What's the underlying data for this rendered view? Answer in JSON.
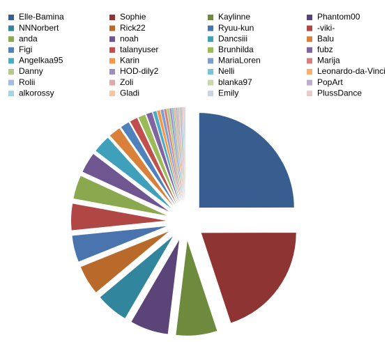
{
  "chart_data": {
    "type": "pie",
    "categories": [
      "Elle-Bamina",
      "Sophie",
      "Kaylinne",
      "Phantom00",
      "NNNorbert",
      "Rick22",
      "Ryuu-kun",
      "-viki-",
      "anda",
      "noah",
      "Dancsiii",
      "Balu",
      "Figi",
      "talanyuser",
      "Brunhilda",
      "fubz",
      "Angelkaa95",
      "Karin",
      "MariaLoren",
      "Marija",
      "Danny",
      "HOD-dily2",
      "Nelli",
      "Leonardo-da-Vinci",
      "Rolii",
      "Zoli",
      "blanka97",
      "PopArt",
      "alkorossy",
      "Gladi",
      "Emily",
      "PlussDance"
    ],
    "values": [
      25,
      20,
      7,
      6.5,
      5.5,
      5,
      4.5,
      4.5,
      4,
      3.5,
      3,
      2,
      1.5,
      1.3,
      1.2,
      1,
      0.6,
      0.5,
      0.5,
      0.4,
      0.4,
      0.3,
      0.3,
      0.25,
      0.25,
      0.2,
      0.2,
      0.2,
      0.15,
      0.15,
      0.15,
      0.1
    ],
    "colors": [
      "#375e8f",
      "#8e3433",
      "#6e8b3d",
      "#5b4478",
      "#31859c",
      "#b9692a",
      "#4a74ae",
      "#b04744",
      "#8aa94f",
      "#6f5690",
      "#3ea0ba",
      "#d9803a",
      "#4f81bd",
      "#c0504d",
      "#9bbb59",
      "#8064a2",
      "#4bacc6",
      "#f79646",
      "#7e9ed0",
      "#d47f7d",
      "#b2c987",
      "#a08bbd",
      "#7ec1d6",
      "#f9ae74",
      "#a7badf",
      "#dfa9a8",
      "#c7d8ab",
      "#bcaed3",
      "#a6d2e1",
      "#fac4a0",
      "#c9d3e8",
      "#e7cbca"
    ],
    "exploded": true,
    "legend": "top"
  }
}
